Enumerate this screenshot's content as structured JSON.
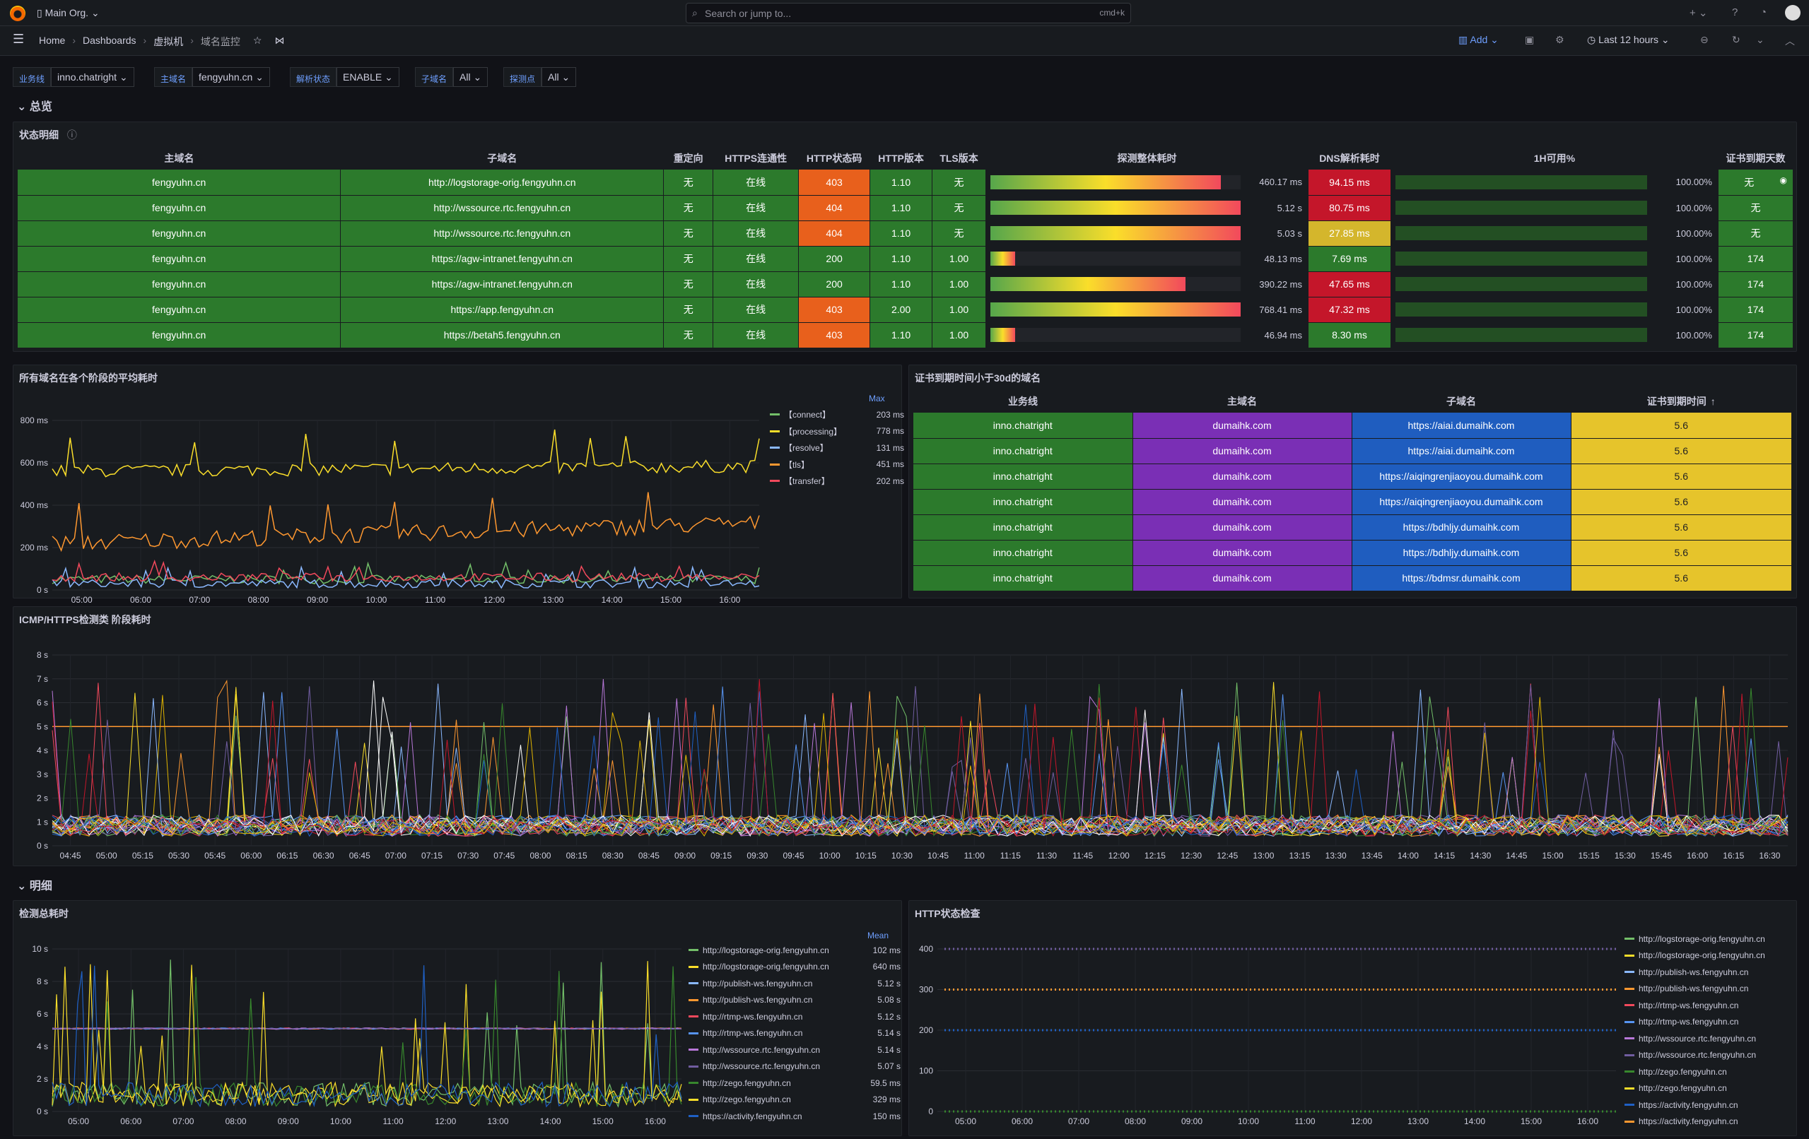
{
  "topbar": {
    "org": "Main Org.",
    "search_placeholder": "Search or jump to...",
    "search_kbd": "cmd+k",
    "add_menu": "+"
  },
  "nav": {
    "crumbs": [
      "Home",
      "Dashboards",
      "虚拟机",
      "域名监控"
    ],
    "add_label": "Add",
    "time_range": "Last 12 hours"
  },
  "vars": [
    {
      "label": "业务线",
      "value": "inno.chatright"
    },
    {
      "label": "主域名",
      "value": "fengyuhn.cn"
    },
    {
      "label": "解析状态",
      "value": "ENABLE"
    },
    {
      "label": "子域名",
      "value": "All"
    },
    {
      "label": "探测点",
      "value": "All"
    }
  ],
  "rows": {
    "overview": "总览",
    "detail": "明细"
  },
  "status_panel": {
    "title": "状态明细",
    "headers": [
      "主域名",
      "子域名",
      "重定向",
      "HTTPS连通性",
      "HTTP状态码",
      "HTTP版本",
      "TLS版本",
      "探测整体耗时",
      "DNS解析耗时",
      "1H可用%",
      "证书到期天数"
    ],
    "rows": [
      {
        "domain": "fengyuhn.cn",
        "sub": "http://logstorage-orig.fengyuhn.cn",
        "redirect": "无",
        "https": "在线",
        "code": "403",
        "ver": "1.10",
        "tls": "无",
        "total": "460.17 ms",
        "total_pct": 0.92,
        "dns": "94.15 ms",
        "dnsc": "r",
        "avail": "100.00%",
        "cert": "无"
      },
      {
        "domain": "fengyuhn.cn",
        "sub": "http://wssource.rtc.fengyuhn.cn",
        "redirect": "无",
        "https": "在线",
        "code": "404",
        "ver": "1.10",
        "tls": "无",
        "total": "5.12 s",
        "total_pct": 1.0,
        "dns": "80.75 ms",
        "dnsc": "r",
        "avail": "100.00%",
        "cert": "无"
      },
      {
        "domain": "fengyuhn.cn",
        "sub": "http://wssource.rtc.fengyuhn.cn",
        "redirect": "无",
        "https": "在线",
        "code": "404",
        "ver": "1.10",
        "tls": "无",
        "total": "5.03 s",
        "total_pct": 1.0,
        "dns": "27.85 ms",
        "dnsc": "y",
        "avail": "100.00%",
        "cert": "无"
      },
      {
        "domain": "fengyuhn.cn",
        "sub": "https://agw-intranet.fengyuhn.cn",
        "redirect": "无",
        "https": "在线",
        "code": "200",
        "ver": "1.10",
        "tls": "1.00",
        "total": "48.13 ms",
        "total_pct": 0.1,
        "dns": "7.69 ms",
        "dnsc": "g",
        "avail": "100.00%",
        "cert": "174"
      },
      {
        "domain": "fengyuhn.cn",
        "sub": "https://agw-intranet.fengyuhn.cn",
        "redirect": "无",
        "https": "在线",
        "code": "200",
        "ver": "1.10",
        "tls": "1.00",
        "total": "390.22 ms",
        "total_pct": 0.78,
        "dns": "47.65 ms",
        "dnsc": "r",
        "avail": "100.00%",
        "cert": "174"
      },
      {
        "domain": "fengyuhn.cn",
        "sub": "https://app.fengyuhn.cn",
        "redirect": "无",
        "https": "在线",
        "code": "403",
        "ver": "2.00",
        "tls": "1.00",
        "total": "768.41 ms",
        "total_pct": 1.0,
        "dns": "47.32 ms",
        "dnsc": "r",
        "avail": "100.00%",
        "cert": "174"
      },
      {
        "domain": "fengyuhn.cn",
        "sub": "https://betah5.fengyuhn.cn",
        "redirect": "无",
        "https": "在线",
        "code": "403",
        "ver": "1.10",
        "tls": "1.00",
        "total": "46.94 ms",
        "total_pct": 0.1,
        "dns": "8.30 ms",
        "dnsc": "g",
        "avail": "100.00%",
        "cert": "174"
      }
    ]
  },
  "avg_panel": {
    "title": "所有域名在各个阶段的平均耗时",
    "legend_header": "Max",
    "series": [
      {
        "name": "【connect】",
        "value": "203 ms",
        "color": "#73bf69"
      },
      {
        "name": "【processing】",
        "value": "778 ms",
        "color": "#fade2a"
      },
      {
        "name": "【resolve】",
        "value": "131 ms",
        "color": "#8ab8ff"
      },
      {
        "name": "【tls】",
        "value": "451 ms",
        "color": "#ff9830"
      },
      {
        "name": "【transfer】",
        "value": "202 ms",
        "color": "#f2495c"
      }
    ],
    "y_ticks": [
      "800 ms",
      "600 ms",
      "400 ms",
      "200 ms",
      "0 s"
    ],
    "x_ticks": [
      "05:00",
      "06:00",
      "07:00",
      "08:00",
      "09:00",
      "10:00",
      "11:00",
      "12:00",
      "13:00",
      "14:00",
      "15:00",
      "16:00"
    ]
  },
  "cert_panel": {
    "title": "证书到期时间小于30d的域名",
    "headers": [
      "业务线",
      "主域名",
      "子域名",
      "证书到期时间"
    ],
    "sort_icon": "↑",
    "rows": [
      {
        "biz": "inno.chatright",
        "main": "dumaihk.com",
        "sub": "https://aiai.dumaihk.com",
        "exp": "5.6"
      },
      {
        "biz": "inno.chatright",
        "main": "dumaihk.com",
        "sub": "https://aiai.dumaihk.com",
        "exp": "5.6"
      },
      {
        "biz": "inno.chatright",
        "main": "dumaihk.com",
        "sub": "https://aiqingrenjiaoyou.dumaihk.com",
        "exp": "5.6"
      },
      {
        "biz": "inno.chatright",
        "main": "dumaihk.com",
        "sub": "https://aiqingrenjiaoyou.dumaihk.com",
        "exp": "5.6"
      },
      {
        "biz": "inno.chatright",
        "main": "dumaihk.com",
        "sub": "https://bdhljy.dumaihk.com",
        "exp": "5.6"
      },
      {
        "biz": "inno.chatright",
        "main": "dumaihk.com",
        "sub": "https://bdhljy.dumaihk.com",
        "exp": "5.6"
      },
      {
        "biz": "inno.chatright",
        "main": "dumaihk.com",
        "sub": "https://bdmsr.dumaihk.com",
        "exp": "5.6"
      }
    ]
  },
  "icmp_panel": {
    "title": "ICMP/HTTPS检测类 阶段耗时",
    "y_ticks": [
      "8 s",
      "7 s",
      "6 s",
      "5 s",
      "4 s",
      "3 s",
      "2 s",
      "1 s",
      "0 s"
    ],
    "x_ticks": [
      "04:45",
      "05:00",
      "05:15",
      "05:30",
      "05:45",
      "06:00",
      "06:15",
      "06:30",
      "06:45",
      "07:00",
      "07:15",
      "07:30",
      "07:45",
      "08:00",
      "08:15",
      "08:30",
      "08:45",
      "09:00",
      "09:15",
      "09:30",
      "09:45",
      "10:00",
      "10:15",
      "10:30",
      "10:45",
      "11:00",
      "11:15",
      "11:30",
      "11:45",
      "12:00",
      "12:15",
      "12:30",
      "12:45",
      "13:00",
      "13:15",
      "13:30",
      "13:45",
      "14:00",
      "14:15",
      "14:30",
      "14:45",
      "15:00",
      "15:15",
      "15:30",
      "15:45",
      "16:00",
      "16:15",
      "16:30"
    ]
  },
  "total_panel": {
    "title": "检测总耗时",
    "legend_header": "Mean",
    "y_ticks": [
      "10 s",
      "8 s",
      "6 s",
      "4 s",
      "2 s",
      "0 s"
    ],
    "x_ticks": [
      "05:00",
      "06:00",
      "07:00",
      "08:00",
      "09:00",
      "10:00",
      "11:00",
      "12:00",
      "13:00",
      "14:00",
      "15:00",
      "16:00"
    ],
    "series": [
      {
        "name": "http://logstorage-orig.fengyuhn.cn",
        "value": "102 ms",
        "color": "#73bf69"
      },
      {
        "name": "http://logstorage-orig.fengyuhn.cn",
        "value": "640 ms",
        "color": "#fade2a"
      },
      {
        "name": "http://publish-ws.fengyuhn.cn",
        "value": "5.12 s",
        "color": "#8ab8ff"
      },
      {
        "name": "http://publish-ws.fengyuhn.cn",
        "value": "5.08 s",
        "color": "#ff9830"
      },
      {
        "name": "http://rtmp-ws.fengyuhn.cn",
        "value": "5.12 s",
        "color": "#f2495c"
      },
      {
        "name": "http://rtmp-ws.fengyuhn.cn",
        "value": "5.14 s",
        "color": "#5794f2"
      },
      {
        "name": "http://wssource.rtc.fengyuhn.cn",
        "value": "5.14 s",
        "color": "#b877d9"
      },
      {
        "name": "http://wssource.rtc.fengyuhn.cn",
        "value": "5.07 s",
        "color": "#705da0"
      },
      {
        "name": "http://zego.fengyuhn.cn",
        "value": "59.5 ms",
        "color": "#37872d"
      },
      {
        "name": "http://zego.fengyuhn.cn",
        "value": "329 ms",
        "color": "#fade2a"
      },
      {
        "name": "https://activity.fengyuhn.cn",
        "value": "150 ms",
        "color": "#1f60c4"
      }
    ]
  },
  "http_panel": {
    "title": "HTTP状态检查",
    "y_ticks": [
      "400",
      "300",
      "200",
      "100",
      "0"
    ],
    "x_ticks": [
      "05:00",
      "06:00",
      "07:00",
      "08:00",
      "09:00",
      "10:00",
      "11:00",
      "12:00",
      "13:00",
      "14:00",
      "15:00",
      "16:00"
    ],
    "series": [
      {
        "name": "http://logstorage-orig.fengyuhn.cn",
        "color": "#73bf69"
      },
      {
        "name": "http://logstorage-orig.fengyuhn.cn",
        "color": "#fade2a"
      },
      {
        "name": "http://publish-ws.fengyuhn.cn",
        "color": "#8ab8ff"
      },
      {
        "name": "http://publish-ws.fengyuhn.cn",
        "color": "#ff9830"
      },
      {
        "name": "http://rtmp-ws.fengyuhn.cn",
        "color": "#f2495c"
      },
      {
        "name": "http://rtmp-ws.fengyuhn.cn",
        "color": "#5794f2"
      },
      {
        "name": "http://wssource.rtc.fengyuhn.cn",
        "color": "#b877d9"
      },
      {
        "name": "http://wssource.rtc.fengyuhn.cn",
        "color": "#705da0"
      },
      {
        "name": "http://zego.fengyuhn.cn",
        "color": "#37872d"
      },
      {
        "name": "http://zego.fengyuhn.cn",
        "color": "#fade2a"
      },
      {
        "name": "https://activity.fengyuhn.cn",
        "color": "#1f60c4"
      },
      {
        "name": "https://activity.fengyuhn.cn",
        "color": "#ff9830"
      }
    ]
  }
}
